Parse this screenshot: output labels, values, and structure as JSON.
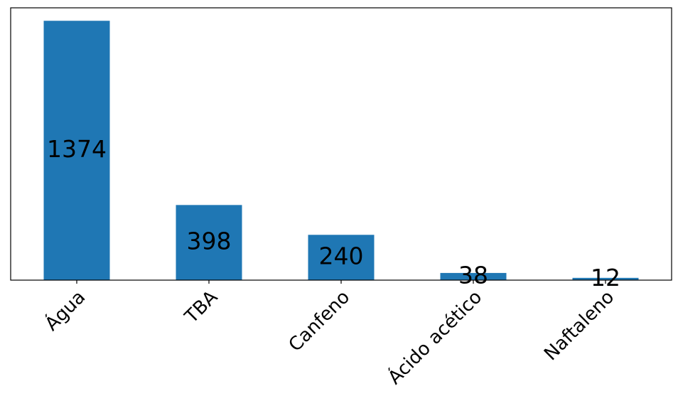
{
  "chart_data": {
    "type": "bar",
    "categories": [
      "Água",
      "TBA",
      "Canfeno",
      "Ácido acético",
      "Naftaleno"
    ],
    "values": [
      1374,
      398,
      240,
      38,
      12
    ],
    "title": "",
    "xlabel": "",
    "ylabel": "",
    "ylim": [
      0,
      1442.7
    ],
    "grid": false,
    "legend": "none",
    "bar_color": "#1f77b4",
    "data_labels": [
      "1374",
      "398",
      "240",
      "38",
      "12"
    ]
  }
}
